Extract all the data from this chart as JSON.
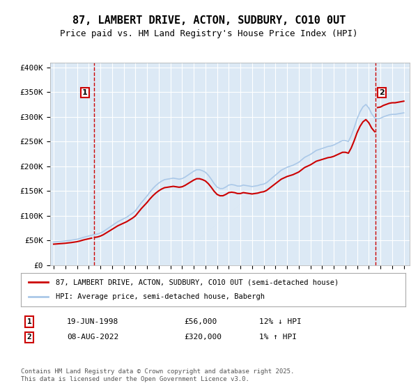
{
  "title": "87, LAMBERT DRIVE, ACTON, SUDBURY, CO10 0UT",
  "subtitle": "Price paid vs. HM Land Registry's House Price Index (HPI)",
  "background_color": "#dce9f5",
  "plot_bg_color": "#dce9f5",
  "ylabel_ticks": [
    "£0",
    "£50K",
    "£100K",
    "£150K",
    "£200K",
    "£250K",
    "£300K",
    "£350K",
    "£400K"
  ],
  "ytick_values": [
    0,
    50000,
    100000,
    150000,
    200000,
    250000,
    300000,
    350000,
    400000
  ],
  "ylim": [
    0,
    410000
  ],
  "xlim_start": 1995,
  "xlim_end": 2025.5,
  "xticks": [
    1995,
    1996,
    1997,
    1998,
    1999,
    2000,
    2001,
    2002,
    2003,
    2004,
    2005,
    2006,
    2007,
    2008,
    2009,
    2010,
    2011,
    2012,
    2013,
    2014,
    2015,
    2016,
    2017,
    2018,
    2019,
    2020,
    2021,
    2022,
    2023,
    2024,
    2025
  ],
  "grid_color": "#ffffff",
  "hpi_line_color": "#aac8e8",
  "price_line_color": "#cc0000",
  "vline_color": "#cc0000",
  "marker1_x": 1998.47,
  "marker1_y": 56000,
  "marker1_label": "1",
  "marker2_x": 2022.6,
  "marker2_y": 320000,
  "marker2_label": "2",
  "legend_line1": "87, LAMBERT DRIVE, ACTON, SUDBURY, CO10 0UT (semi-detached house)",
  "legend_line2": "HPI: Average price, semi-detached house, Babergh",
  "table_row1": [
    "1",
    "19-JUN-1998",
    "£56,000",
    "12% ↓ HPI"
  ],
  "table_row2": [
    "2",
    "08-AUG-2022",
    "£320,000",
    "1% ↑ HPI"
  ],
  "footer": "Contains HM Land Registry data © Crown copyright and database right 2025.\nThis data is licensed under the Open Government Licence v3.0.",
  "hpi_data_x": [
    1995.0,
    1995.25,
    1995.5,
    1995.75,
    1996.0,
    1996.25,
    1996.5,
    1996.75,
    1997.0,
    1997.25,
    1997.5,
    1997.75,
    1998.0,
    1998.25,
    1998.5,
    1998.75,
    1999.0,
    1999.25,
    1999.5,
    1999.75,
    2000.0,
    2000.25,
    2000.5,
    2000.75,
    2001.0,
    2001.25,
    2001.5,
    2001.75,
    2002.0,
    2002.25,
    2002.5,
    2002.75,
    2003.0,
    2003.25,
    2003.5,
    2003.75,
    2004.0,
    2004.25,
    2004.5,
    2004.75,
    2005.0,
    2005.25,
    2005.5,
    2005.75,
    2006.0,
    2006.25,
    2006.5,
    2006.75,
    2007.0,
    2007.25,
    2007.5,
    2007.75,
    2008.0,
    2008.25,
    2008.5,
    2008.75,
    2009.0,
    2009.25,
    2009.5,
    2009.75,
    2010.0,
    2010.25,
    2010.5,
    2010.75,
    2011.0,
    2011.25,
    2011.5,
    2011.75,
    2012.0,
    2012.25,
    2012.5,
    2012.75,
    2013.0,
    2013.25,
    2013.5,
    2013.75,
    2014.0,
    2014.25,
    2014.5,
    2014.75,
    2015.0,
    2015.25,
    2015.5,
    2015.75,
    2016.0,
    2016.25,
    2016.5,
    2016.75,
    2017.0,
    2017.25,
    2017.5,
    2017.75,
    2018.0,
    2018.25,
    2018.5,
    2018.75,
    2019.0,
    2019.25,
    2019.5,
    2019.75,
    2020.0,
    2020.25,
    2020.5,
    2020.75,
    2021.0,
    2021.25,
    2021.5,
    2021.75,
    2022.0,
    2022.25,
    2022.5,
    2022.75,
    2023.0,
    2023.25,
    2023.5,
    2023.75,
    2024.0,
    2024.25,
    2024.5,
    2024.75,
    2025.0
  ],
  "hpi_data_y": [
    47000,
    47500,
    48000,
    48500,
    49000,
    49800,
    50500,
    51500,
    52500,
    54000,
    56000,
    57500,
    59000,
    60500,
    62000,
    63000,
    65000,
    68000,
    72000,
    76000,
    80000,
    84000,
    88000,
    91000,
    94000,
    97000,
    101000,
    105000,
    110000,
    118000,
    126000,
    133000,
    140000,
    148000,
    155000,
    161000,
    166000,
    170000,
    173000,
    174000,
    175000,
    176000,
    175000,
    174000,
    175000,
    178000,
    182000,
    186000,
    190000,
    193000,
    193000,
    191000,
    188000,
    182000,
    174000,
    165000,
    158000,
    155000,
    155000,
    158000,
    162000,
    163000,
    162000,
    160000,
    160000,
    162000,
    161000,
    160000,
    159000,
    160000,
    161000,
    163000,
    164000,
    167000,
    172000,
    177000,
    182000,
    187000,
    192000,
    195000,
    198000,
    200000,
    202000,
    205000,
    208000,
    213000,
    218000,
    221000,
    224000,
    228000,
    232000,
    234000,
    236000,
    238000,
    240000,
    241000,
    243000,
    246000,
    249000,
    252000,
    252000,
    250000,
    262000,
    278000,
    296000,
    310000,
    320000,
    325000,
    318000,
    306000,
    298000,
    296000,
    297000,
    300000,
    302000,
    304000,
    305000,
    305000,
    306000,
    307000,
    308000
  ],
  "price_data_x": [
    1998.47,
    2022.6
  ],
  "price_data_y": [
    56000,
    320000
  ]
}
